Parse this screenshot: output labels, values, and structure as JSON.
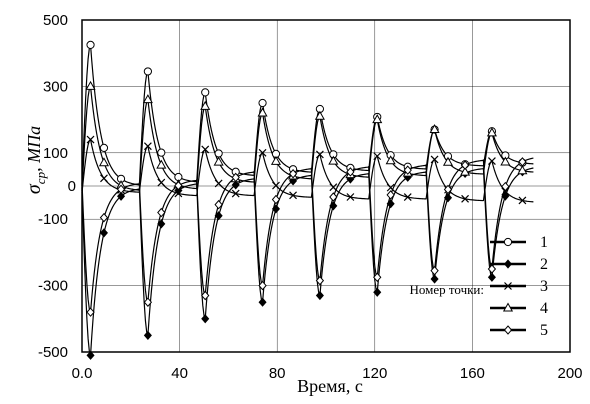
{
  "chart_data": {
    "type": "line",
    "xlabel": "Время, с",
    "ylabel": "σ",
    "ylabel_sub": "ср",
    "ylabel_unit": ", МПа",
    "xlim": [
      0,
      200
    ],
    "ylim": [
      -500,
      500
    ],
    "grid": true,
    "legend_placement": "bottom-right",
    "legend_caption": "Номер точки:",
    "x_ticks": [
      "0.0",
      "40",
      "80",
      "120",
      "160",
      "200"
    ],
    "y_ticks": [
      "-500",
      "-300",
      "-100",
      "0",
      "100",
      "300",
      "500"
    ],
    "cycle_starts": [
      0,
      23.5,
      47,
      70.5,
      94,
      117.5,
      141,
      164.5
    ],
    "x_end": 185,
    "series": [
      {
        "name": "1",
        "marker": "circle",
        "peak": [
          425,
          345,
          282,
          250,
          232,
          208,
          170,
          165
        ],
        "rest": [
          0,
          10,
          30,
          40,
          45,
          50,
          60,
          65
        ]
      },
      {
        "name": "2",
        "marker": "diamond",
        "peak": [
          -510,
          -450,
          -400,
          -350,
          -330,
          -320,
          -280,
          -275
        ],
        "rest": [
          -5,
          10,
          25,
          35,
          40,
          45,
          55,
          60
        ]
      },
      {
        "name": "3",
        "marker": "cross",
        "peak": [
          140,
          120,
          110,
          100,
          95,
          90,
          80,
          75
        ],
        "rest": [
          -20,
          -30,
          -30,
          -35,
          -40,
          -40,
          -45,
          -50
        ]
      },
      {
        "name": "4",
        "marker": "triangle",
        "peak": [
          300,
          260,
          240,
          220,
          210,
          200,
          170,
          160
        ],
        "rest": [
          -15,
          -10,
          10,
          20,
          25,
          30,
          35,
          40
        ]
      },
      {
        "name": "5",
        "marker": "diamond-open",
        "peak": [
          -380,
          -350,
          -330,
          -300,
          -285,
          -275,
          -255,
          -250
        ],
        "rest": [
          10,
          20,
          45,
          55,
          60,
          65,
          80,
          90
        ]
      }
    ]
  }
}
